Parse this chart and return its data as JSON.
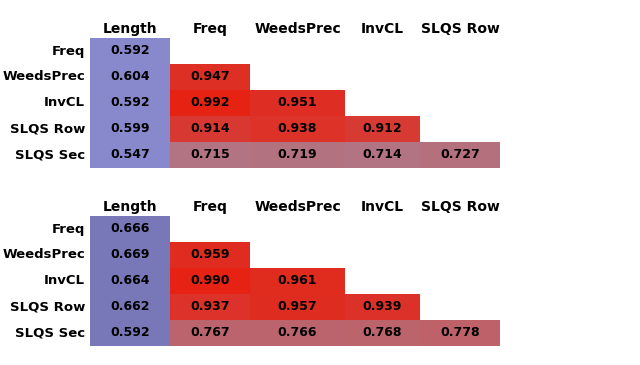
{
  "table1": {
    "rows": [
      "Freq",
      "WeedsPrec",
      "InvCL",
      "SLQS Row",
      "SLQS Sec"
    ],
    "cols": [
      "Length",
      "Freq",
      "WeedsPrec",
      "InvCL",
      "SLQS Row"
    ],
    "values": [
      [
        0.592,
        null,
        null,
        null,
        null
      ],
      [
        0.604,
        0.947,
        null,
        null,
        null
      ],
      [
        0.592,
        0.992,
        0.951,
        null,
        null
      ],
      [
        0.599,
        0.914,
        0.938,
        0.912,
        null
      ],
      [
        0.547,
        0.715,
        0.719,
        0.714,
        0.727
      ]
    ]
  },
  "table2": {
    "rows": [
      "Freq",
      "WeedsPrec",
      "InvCL",
      "SLQS Row",
      "SLQS Sec"
    ],
    "cols": [
      "Length",
      "Freq",
      "WeedsPrec",
      "InvCL",
      "SLQS Row"
    ],
    "values": [
      [
        0.666,
        null,
        null,
        null,
        null
      ],
      [
        0.669,
        0.959,
        null,
        null,
        null
      ],
      [
        0.664,
        0.99,
        0.961,
        null,
        null
      ],
      [
        0.662,
        0.937,
        0.957,
        0.939,
        null
      ],
      [
        0.592,
        0.767,
        0.766,
        0.768,
        0.778
      ]
    ]
  },
  "color_length_top": "#8888cc",
  "color_length_bottom": "#7878b8",
  "background": "#ffffff",
  "text_color": "#000000",
  "fontsize": 9,
  "header_fontsize": 10,
  "row_label_fontsize": 9.5
}
